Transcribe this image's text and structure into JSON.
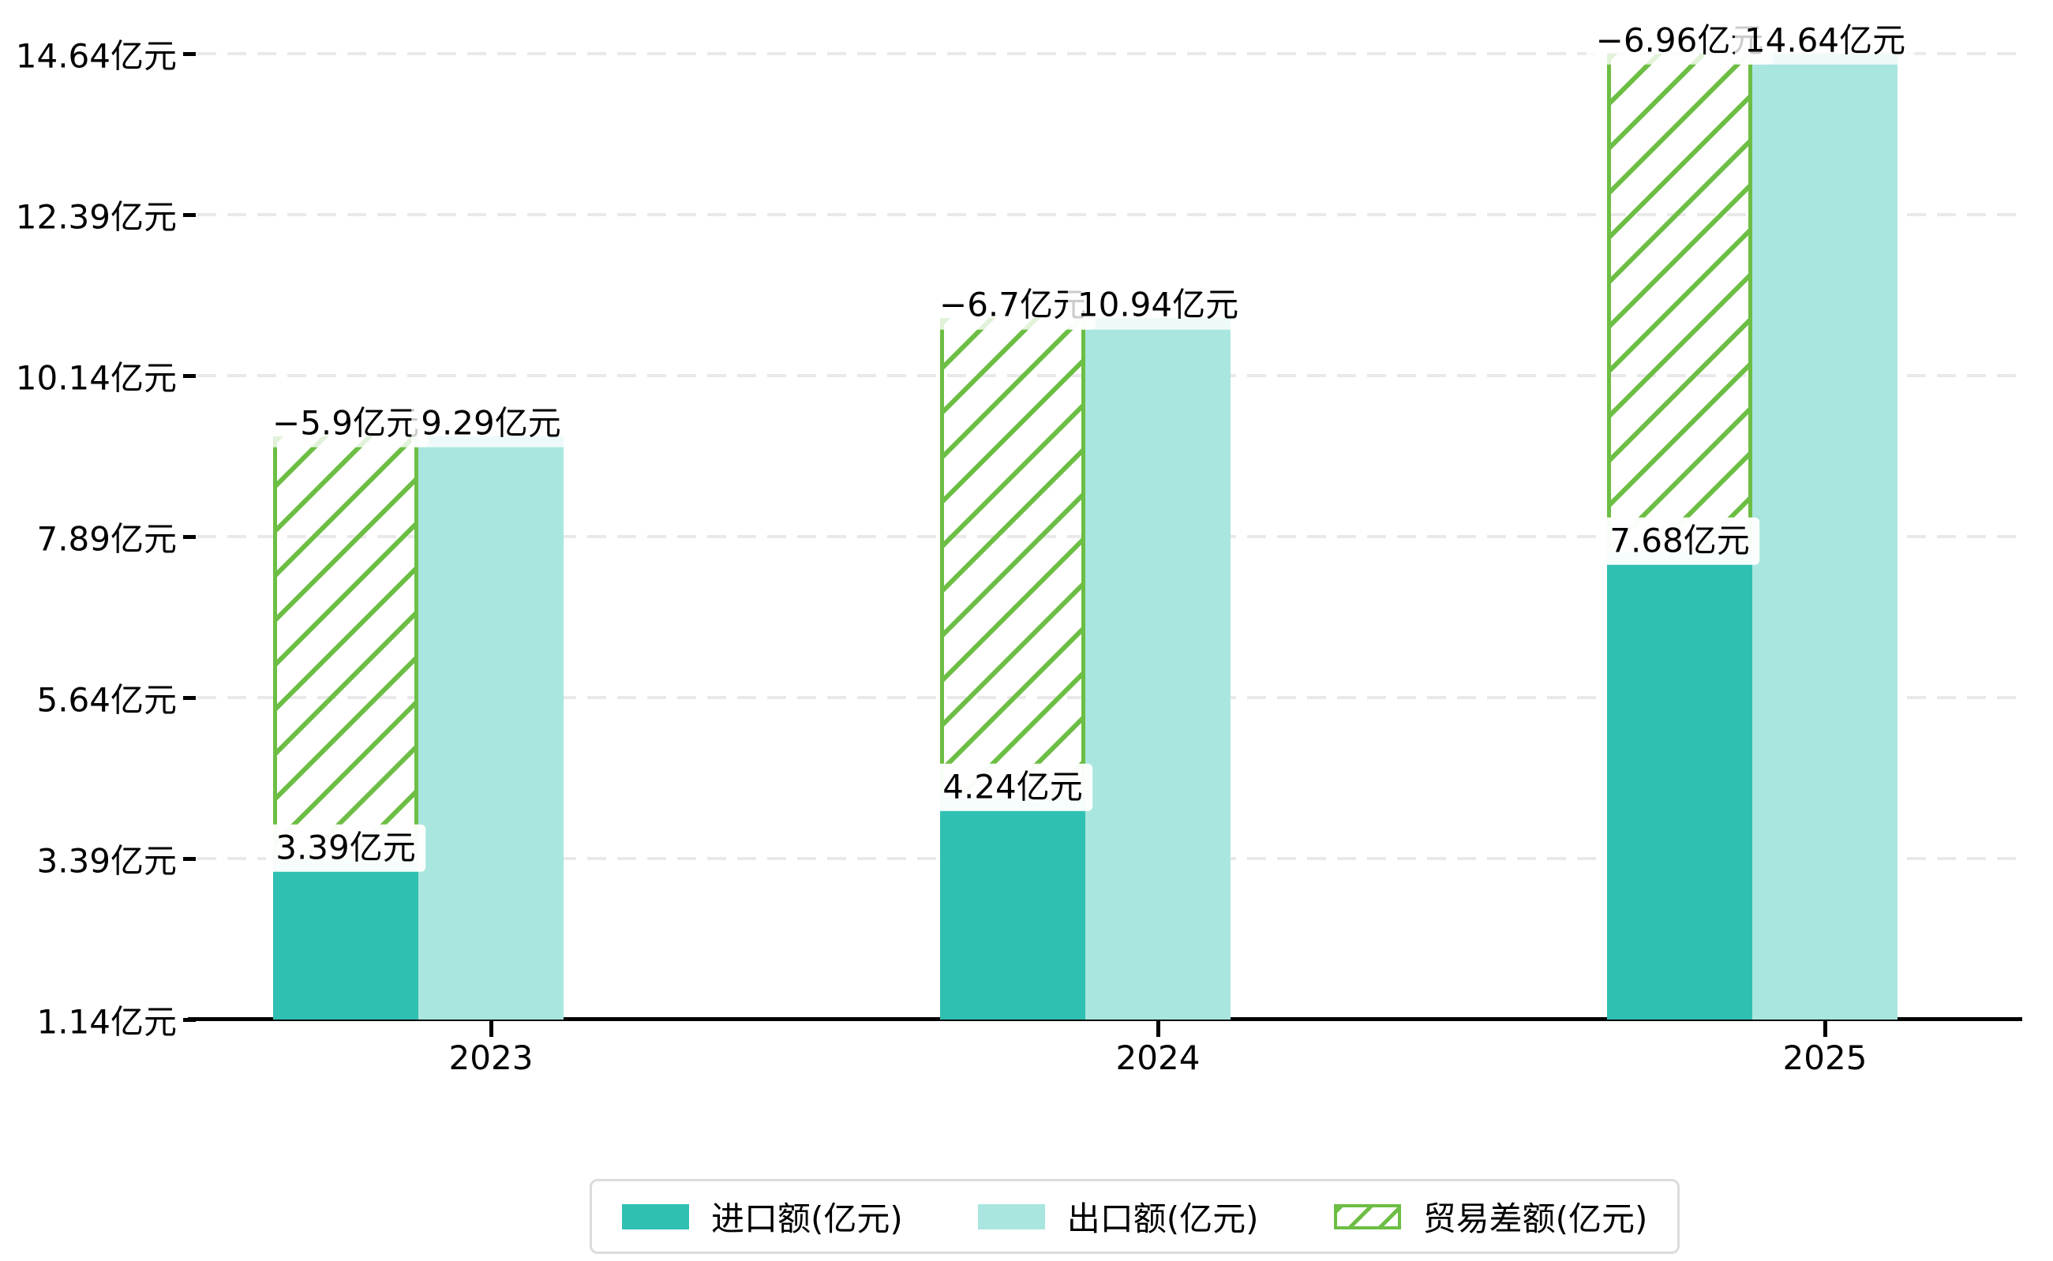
{
  "chart_data": {
    "type": "bar",
    "categories": [
      "2023",
      "2024",
      "2025"
    ],
    "series": [
      {
        "name": "进口额(亿元)",
        "values": [
          3.39,
          4.24,
          7.68
        ],
        "labels": [
          "3.39亿元",
          "4.24亿元",
          "7.68亿元"
        ],
        "color": "#30c0b2",
        "style": "solid"
      },
      {
        "name": "出口额(亿元)",
        "values": [
          9.29,
          10.94,
          14.64
        ],
        "labels": [
          "9.29亿元",
          "10.94亿元",
          "14.64亿元"
        ],
        "color": "#a9e6df",
        "style": "solid"
      },
      {
        "name": "贸易差额(亿元)",
        "values": [
          -5.9,
          -6.7,
          -6.96
        ],
        "labels": [
          "−5.9亿元",
          "−6.7亿元",
          "−6.96亿元"
        ],
        "color": "#6cbe44",
        "style": "hatched"
      }
    ],
    "y_ticks": [
      "14.64亿元",
      "12.39亿元",
      "10.14亿元",
      "7.89亿元",
      "5.64亿元",
      "3.39亿元",
      "1.14亿元"
    ],
    "y_tick_values": [
      14.64,
      12.39,
      10.14,
      7.89,
      5.64,
      3.39,
      1.14
    ],
    "ylim": [
      1.14,
      14.64
    ],
    "xlabel": "",
    "ylabel": "",
    "title": "",
    "grid": true,
    "legend_position": "bottom",
    "colors": {
      "import": "#30c0b2",
      "export": "#a9e6df",
      "balance": "#6cbe44",
      "gridline": "#e9e9e9",
      "axis": "#000000",
      "legend_border": "#dcdcdc",
      "label_box": "#ffffff"
    }
  }
}
